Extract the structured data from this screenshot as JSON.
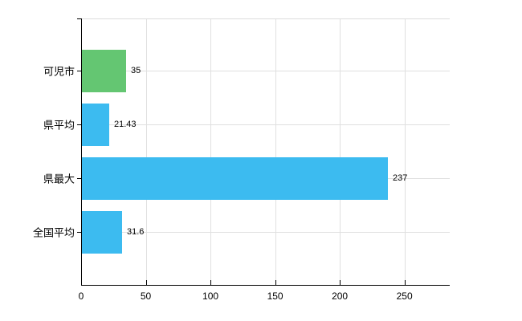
{
  "chart_data": {
    "type": "bar",
    "orientation": "horizontal",
    "title": "",
    "xlabel": "",
    "ylabel": "",
    "categories": [
      "可児市",
      "県平均",
      "県最大",
      "全国平均"
    ],
    "values": [
      35,
      21.43,
      237,
      31.6
    ],
    "value_labels": [
      "35",
      "21.43",
      "237",
      "31.6"
    ],
    "bar_colors": [
      "#64c672",
      "#3cbbf0",
      "#3cbbf0",
      "#3cbbf0"
    ],
    "x_ticks": [
      0,
      50,
      100,
      150,
      200,
      250
    ],
    "x_tick_labels": [
      "0",
      "50",
      "100",
      "150",
      "200",
      "250"
    ],
    "xlim": [
      0,
      285
    ],
    "grid": true,
    "legend": false,
    "colors": {
      "grid": "#e0e0e0",
      "top_border": "#dddddd",
      "axis": "#000000",
      "text": "#000000",
      "background": "#ffffff"
    }
  }
}
